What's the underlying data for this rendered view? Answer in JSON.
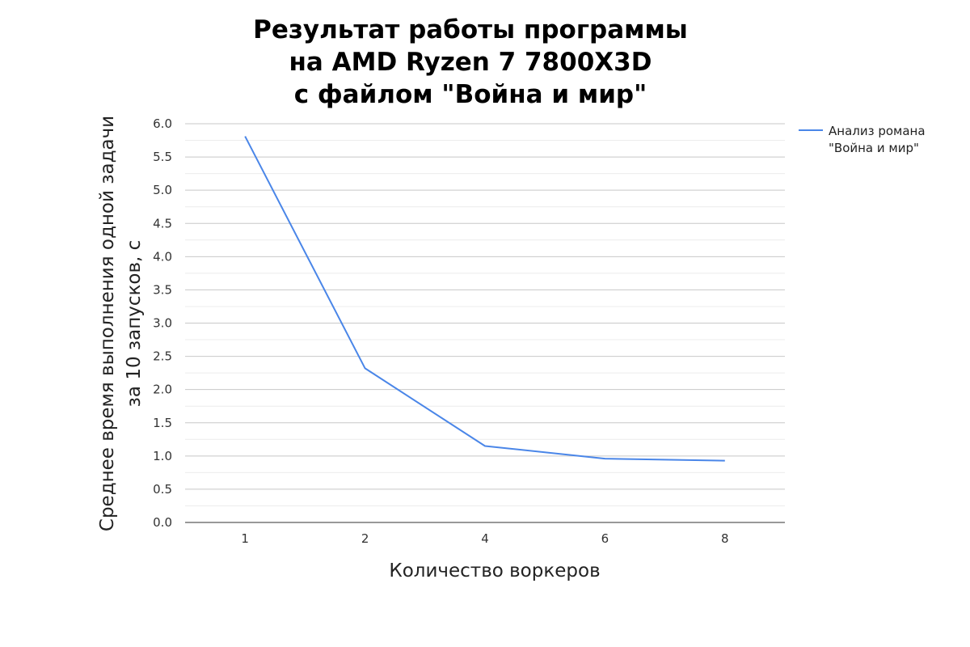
{
  "chart_data": {
    "type": "line",
    "title_lines": [
      "Результат работы программы",
      "на AMD Ryzen 7 7800X3D",
      "с файлом \"Война и мир\""
    ],
    "xlabel": "Количество воркеров",
    "ylabel_lines": [
      "Среднее время выполнения одной задачи",
      "за 10 запусков, с"
    ],
    "categories": [
      "1",
      "2",
      "4",
      "6",
      "8"
    ],
    "series": [
      {
        "name_lines": [
          "Анализ романа",
          "\"Война и мир\""
        ],
        "values": [
          5.81,
          2.32,
          1.15,
          0.96,
          0.93
        ],
        "color": "#4a86e8"
      }
    ],
    "ylim": [
      0,
      6
    ],
    "yticks": [
      "0.0",
      "0.5",
      "1.0",
      "1.5",
      "2.0",
      "2.5",
      "3.0",
      "3.5",
      "4.0",
      "4.5",
      "5.0",
      "5.5",
      "6.0"
    ],
    "grid": true,
    "legend_position": "right-top"
  }
}
